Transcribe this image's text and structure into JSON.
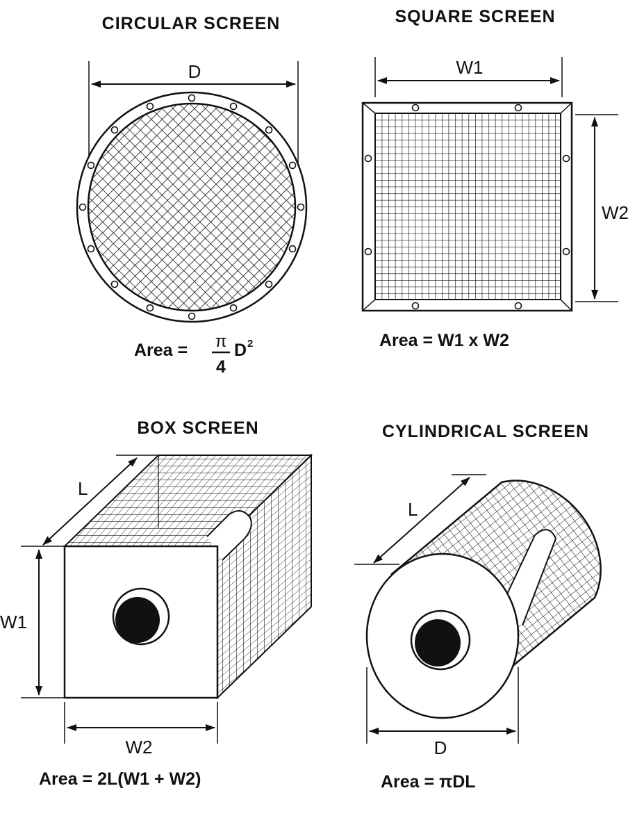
{
  "panels": {
    "circular": {
      "title": "CIRCULAR SCREEN",
      "dim_label": "D",
      "formula_prefix": "Area  =",
      "formula_num": "π",
      "formula_den": "4",
      "formula_var": "D",
      "formula_exp": "2"
    },
    "square": {
      "title": "SQUARE SCREEN",
      "width_label": "W1",
      "height_label": "W2",
      "formula": "Area  =  W1  x  W2"
    },
    "box": {
      "title": "BOX SCREEN",
      "length_label": "L",
      "height_label": "W1",
      "width_label": "W2",
      "formula": "Area  =  2L(W1  +  W2)"
    },
    "cylindrical": {
      "title": "CYLINDRICAL SCREEN",
      "length_label": "L",
      "diameter_label": "D",
      "formula": "Area  =   πDL"
    }
  },
  "colors": {
    "ink": "#111111",
    "paper": "#ffffff"
  }
}
